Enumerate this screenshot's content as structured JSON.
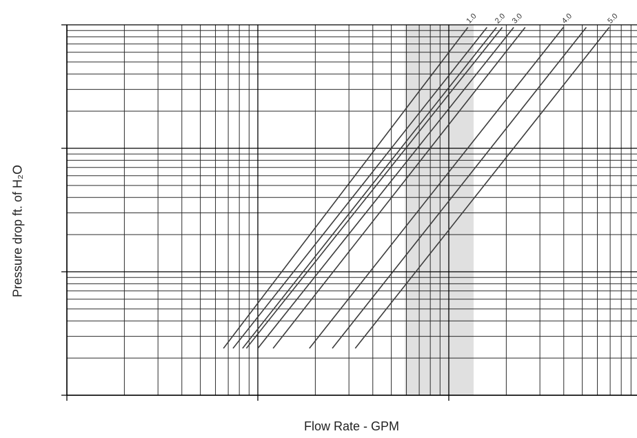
{
  "chart_data": {
    "type": "line",
    "title": "",
    "xlabel": "Flow Rate - GPM",
    "ylabel": "Pressure drop ft. of H₂O",
    "x_scale": "log",
    "y_scale": "log",
    "x_decades": 3,
    "y_decades": 3,
    "grid": true,
    "tick_labels": "none",
    "highlight_band": {
      "x_from_decades": 1.77,
      "x_to_decades": 2.13,
      "color": "#e0e0e0"
    },
    "line_color": "#3c3c3c",
    "series": [
      {
        "name": "1.0",
        "x_decades": [
          0.82,
          2.1
        ],
        "y_decades": [
          0.38,
          2.98
        ],
        "label_visible": true
      },
      {
        "name": "",
        "x_decades": [
          0.87,
          2.2
        ],
        "y_decades": [
          0.38,
          2.98
        ],
        "label_visible": false
      },
      {
        "name": "2.0",
        "x_decades": [
          0.92,
          2.25
        ],
        "y_decades": [
          0.38,
          2.98
        ],
        "label_visible": true
      },
      {
        "name": "",
        "x_decades": [
          0.94,
          2.28
        ],
        "y_decades": [
          0.38,
          2.98
        ],
        "label_visible": false
      },
      {
        "name": "3.0",
        "x_decades": [
          1.0,
          2.34
        ],
        "y_decades": [
          0.38,
          2.98
        ],
        "label_visible": true
      },
      {
        "name": "",
        "x_decades": [
          1.08,
          2.4
        ],
        "y_decades": [
          0.38,
          2.98
        ],
        "label_visible": false
      },
      {
        "name": "4.0",
        "x_decades": [
          1.27,
          2.6
        ],
        "y_decades": [
          0.38,
          2.98
        ],
        "label_visible": true
      },
      {
        "name": "",
        "x_decades": [
          1.39,
          2.72
        ],
        "y_decades": [
          0.38,
          2.98
        ],
        "label_visible": false
      },
      {
        "name": "5.0",
        "x_decades": [
          1.51,
          2.84
        ],
        "y_decades": [
          0.38,
          2.98
        ],
        "label_visible": true
      }
    ]
  }
}
